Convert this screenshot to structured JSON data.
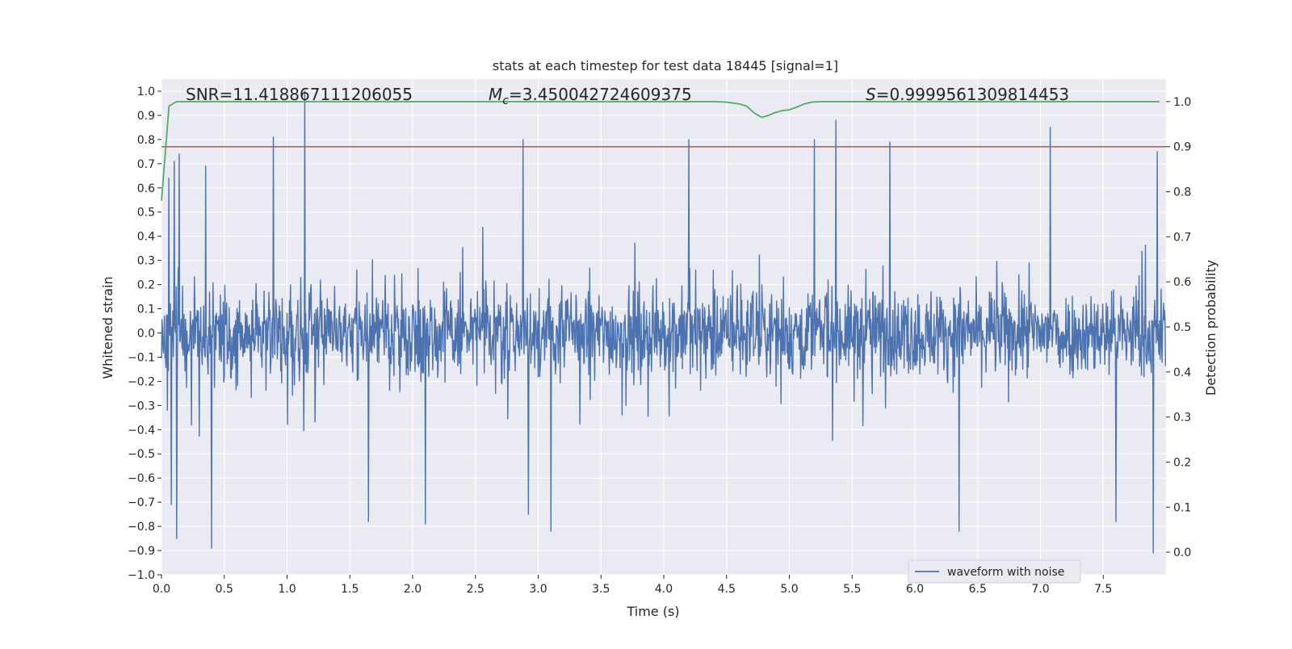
{
  "chart_data": {
    "type": "line",
    "title": "stats at each timestep for test data 18445 [signal=1]",
    "xlabel": "Time (s)",
    "ylabel": "Whitened strain",
    "ylabel_right": "Detection probability",
    "xlim": [
      0.0,
      8.0
    ],
    "ylim": [
      -1.0,
      1.05
    ],
    "ylim_right": [
      -0.05,
      1.05
    ],
    "x_ticks": [
      "0.0",
      "0.5",
      "1.0",
      "1.5",
      "2.0",
      "2.5",
      "3.0",
      "3.5",
      "4.0",
      "4.5",
      "5.0",
      "5.5",
      "6.0",
      "6.5",
      "7.0",
      "7.5"
    ],
    "y_ticks": [
      "1.0",
      "0.9",
      "0.8",
      "0.7",
      "0.6",
      "0.5",
      "0.4",
      "0.3",
      "0.2",
      "0.1",
      "0.0",
      "−0.1",
      "−0.2",
      "−0.3",
      "−0.4",
      "−0.5",
      "−0.6",
      "−0.7",
      "−0.8",
      "−0.9",
      "−1.0"
    ],
    "y_ticks_right": [
      "1.0",
      "0.9",
      "0.8",
      "0.7",
      "0.6",
      "0.5",
      "0.4",
      "0.3",
      "0.2",
      "0.1",
      "0.0"
    ],
    "grid": true,
    "legend_position": "lower-right",
    "annotations": {
      "snr": "SNR=11.418867111206055",
      "mc_symbol": "M",
      "mc_sub": "c",
      "mc_value": "=3.450042724609375",
      "s_symbol": "S",
      "s_value": "=0.9999561309814453"
    },
    "threshold_right": 0.9,
    "series": [
      {
        "name": "waveform with noise",
        "axis": "left",
        "color": "#4c72b0",
        "sample_rate_hz": 256,
        "envelope_typical": [
          -0.42,
          0.43
        ],
        "peaks": [
          {
            "x": 0.06,
            "y": 0.64
          },
          {
            "x": 0.08,
            "y": -0.71
          },
          {
            "x": 0.1,
            "y": 0.71
          },
          {
            "x": 0.12,
            "y": -0.85
          },
          {
            "x": 0.14,
            "y": 0.74
          },
          {
            "x": 0.35,
            "y": 0.69
          },
          {
            "x": 0.4,
            "y": -0.89
          },
          {
            "x": 0.89,
            "y": 0.81
          },
          {
            "x": 1.14,
            "y": 1.0
          },
          {
            "x": 1.65,
            "y": -0.78
          },
          {
            "x": 2.1,
            "y": -0.79
          },
          {
            "x": 2.88,
            "y": 0.8
          },
          {
            "x": 2.92,
            "y": -0.75
          },
          {
            "x": 3.1,
            "y": -0.82
          },
          {
            "x": 4.2,
            "y": 0.8
          },
          {
            "x": 5.2,
            "y": 0.8
          },
          {
            "x": 5.37,
            "y": 0.88
          },
          {
            "x": 5.8,
            "y": 0.79
          },
          {
            "x": 6.35,
            "y": -0.82
          },
          {
            "x": 7.08,
            "y": 0.85
          },
          {
            "x": 7.6,
            "y": -0.78
          },
          {
            "x": 7.9,
            "y": -0.91
          },
          {
            "x": 7.93,
            "y": 0.75
          }
        ]
      },
      {
        "name": "",
        "axis": "right",
        "color": "#55a868",
        "x": [
          0.0,
          0.02,
          0.04,
          0.06,
          0.12,
          0.2,
          4.4,
          4.5,
          4.6,
          4.66,
          4.72,
          4.78,
          4.84,
          4.88,
          4.94,
          5.0,
          5.06,
          5.12,
          5.18,
          5.25,
          5.5,
          7.95
        ],
        "y": [
          0.78,
          0.85,
          0.92,
          0.99,
          1.0,
          1.0,
          1.0,
          0.999,
          0.995,
          0.99,
          0.975,
          0.965,
          0.97,
          0.975,
          0.98,
          0.982,
          0.988,
          0.995,
          0.999,
          1.0,
          1.0,
          1.0
        ]
      }
    ]
  }
}
